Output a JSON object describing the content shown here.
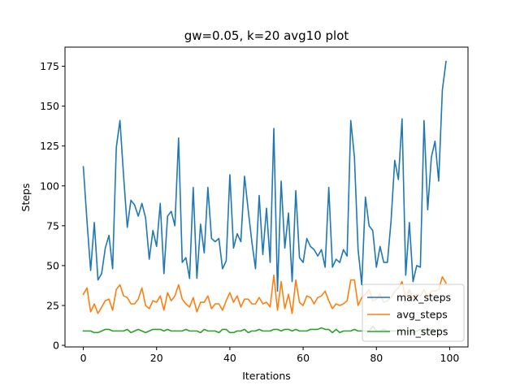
{
  "chart_data": {
    "type": "line",
    "title": "gw=0.05, k=20 avg10 plot",
    "xlabel": "Iterations",
    "ylabel": "Steps",
    "xlim": [
      -5,
      105
    ],
    "ylim": [
      -1,
      187
    ],
    "xticks": [
      0,
      20,
      40,
      60,
      80,
      100
    ],
    "yticks": [
      0,
      25,
      50,
      75,
      100,
      125,
      150,
      175
    ],
    "grid": false,
    "legend_position": "bottom-right",
    "x": [
      0,
      1,
      2,
      3,
      4,
      5,
      6,
      7,
      8,
      9,
      10,
      11,
      12,
      13,
      14,
      15,
      16,
      17,
      18,
      19,
      20,
      21,
      22,
      23,
      24,
      25,
      26,
      27,
      28,
      29,
      30,
      31,
      32,
      33,
      34,
      35,
      36,
      37,
      38,
      39,
      40,
      41,
      42,
      43,
      44,
      45,
      46,
      47,
      48,
      49,
      50,
      51,
      52,
      53,
      54,
      55,
      56,
      57,
      58,
      59,
      60,
      61,
      62,
      63,
      64,
      65,
      66,
      67,
      68,
      69,
      70,
      71,
      72,
      73,
      74,
      75,
      76,
      77,
      78,
      79,
      80,
      81,
      82,
      83,
      84,
      85,
      86,
      87,
      88,
      89,
      90,
      91,
      92,
      93,
      94,
      95,
      96,
      97,
      98,
      99
    ],
    "series": [
      {
        "name": "max_steps",
        "color": "#1f77b4",
        "values": [
          112,
          78,
          47,
          77,
          41,
          45,
          61,
          69,
          48,
          124,
          141,
          106,
          74,
          91,
          88,
          81,
          89,
          80,
          54,
          72,
          62,
          89,
          45,
          81,
          84,
          75,
          130,
          52,
          55,
          42,
          99,
          42,
          76,
          58,
          99,
          67,
          65,
          67,
          48,
          53,
          107,
          61,
          70,
          65,
          106,
          85,
          65,
          48,
          94,
          57,
          86,
          52,
          136,
          34,
          103,
          61,
          83,
          40,
          97,
          55,
          52,
          67,
          62,
          60,
          56,
          60,
          49,
          99,
          49,
          54,
          52,
          60,
          56,
          141,
          118,
          60,
          38,
          93,
          75,
          72,
          49,
          62,
          52,
          52,
          78,
          116,
          104,
          142,
          44,
          77,
          40,
          50,
          49,
          141,
          85,
          118,
          128,
          103,
          160,
          178
        ]
      },
      {
        "name": "avg_steps",
        "color": "#ff7f0e",
        "values": [
          32,
          36,
          21,
          26,
          20,
          24,
          28,
          29,
          22,
          35,
          38,
          31,
          30,
          26,
          26,
          29,
          36,
          25,
          23,
          28,
          27,
          31,
          22,
          33,
          28,
          31,
          38,
          29,
          26,
          24,
          30,
          21,
          27,
          27,
          31,
          23,
          26,
          26,
          22,
          28,
          33,
          27,
          31,
          24,
          29,
          29,
          26,
          26,
          30,
          26,
          27,
          24,
          44,
          22,
          40,
          23,
          32,
          20,
          41,
          27,
          25,
          31,
          30,
          26,
          30,
          31,
          34,
          28,
          23,
          26,
          25,
          26,
          28,
          41,
          41,
          25,
          30,
          32,
          35,
          28,
          29,
          32,
          27,
          28,
          30,
          34,
          36,
          40,
          30,
          35,
          29,
          32,
          31,
          35,
          30,
          34,
          34,
          35,
          43,
          39
        ]
      },
      {
        "name": "min_steps",
        "color": "#2ca02c",
        "values": [
          9,
          9,
          9,
          8,
          8,
          9,
          10,
          10,
          9,
          9,
          9,
          9,
          10,
          8,
          9,
          10,
          9,
          8,
          9,
          10,
          10,
          10,
          9,
          10,
          9,
          9,
          9,
          9,
          10,
          9,
          9,
          9,
          8,
          10,
          9,
          9,
          9,
          8,
          10,
          10,
          8,
          8,
          9,
          9,
          10,
          8,
          9,
          9,
          10,
          9,
          9,
          9,
          10,
          10,
          9,
          10,
          10,
          9,
          10,
          9,
          9,
          9,
          10,
          10,
          10,
          11,
          10,
          10,
          8,
          10,
          8,
          9,
          9,
          9,
          10,
          9,
          9,
          9,
          9,
          12,
          9,
          9,
          10,
          9,
          9,
          9,
          9,
          10,
          9,
          9,
          8,
          9,
          10,
          10,
          9,
          10,
          9,
          10,
          9,
          10
        ]
      }
    ]
  }
}
